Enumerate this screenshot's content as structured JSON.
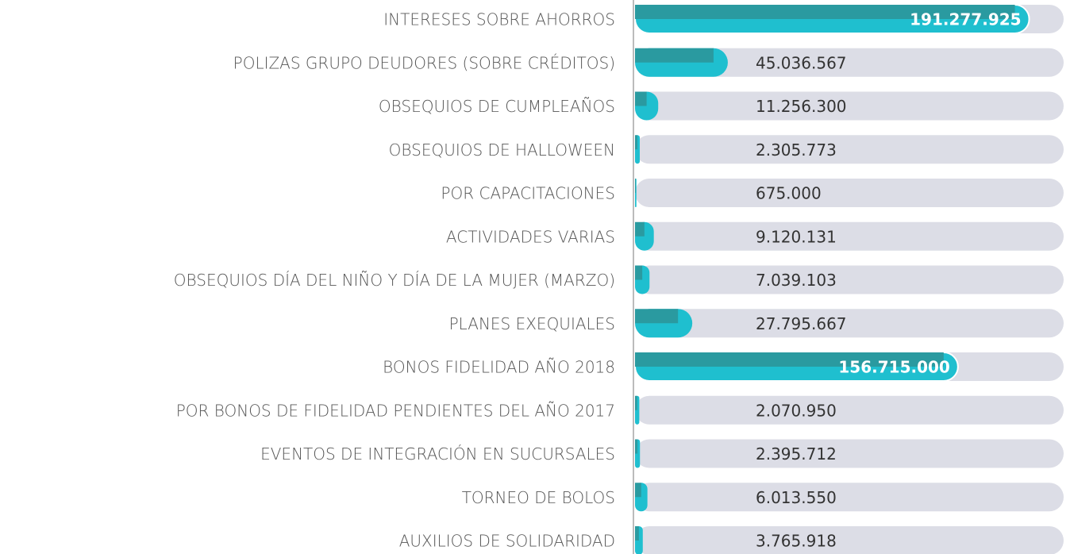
{
  "chart_data": {
    "type": "bar",
    "orientation": "horizontal",
    "categories": [
      "INTERESES SOBRE AHORROS",
      "POLIZAS GRUPO DEUDORES (SOBRE CRÉDITOS)",
      "OBSEQUIOS DE CUMPLEAÑOS",
      "OBSEQUIOS DE HALLOWEEN",
      "POR CAPACITACIONES",
      "ACTIVIDADES VARIAS",
      "OBSEQUIOS DÍA DEL NIÑO Y DÍA DE LA MUJER (MARZO)",
      "PLANES EXEQUIALES",
      "BONOS FIDELIDAD AÑO 2018",
      "POR BONOS DE FIDELIDAD PENDIENTES DEL AÑO 2017",
      "EVENTOS DE INTEGRACIÓN EN SUCURSALES",
      "TORNEO DE BOLOS",
      "AUXILIOS DE SOLIDARIDAD"
    ],
    "values": [
      191277925,
      45036567,
      11256300,
      2305773,
      675000,
      9120131,
      7039103,
      27795667,
      156715000,
      2070950,
      2395712,
      6013550,
      3765918
    ],
    "value_labels": [
      "191.277.925",
      "45.036.567",
      "11.256.300",
      "2.305.773",
      "675.000",
      "9.120.131",
      "7.039.103",
      "27.795.667",
      "156.715.000",
      "2.070.950",
      "2.395.712",
      "6.013.550",
      "3.765.918"
    ],
    "color": "#1fbfcf",
    "xlim": [
      0,
      208000000
    ]
  }
}
